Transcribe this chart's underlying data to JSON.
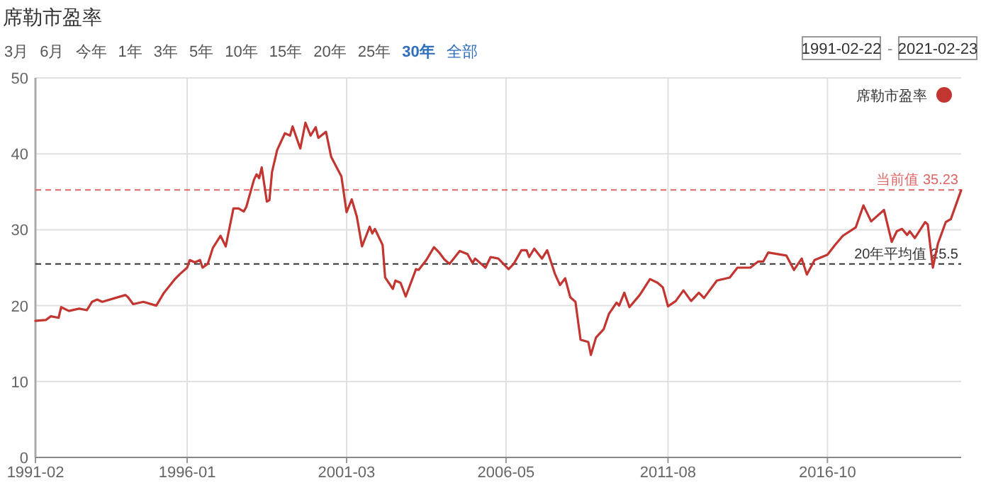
{
  "chart_data": {
    "type": "line",
    "title": "席勒市盈率",
    "annotations": [
      "3月",
      "6月",
      "今年",
      "1年",
      "3年",
      "5年",
      "10年",
      "15年",
      "20年",
      "25年",
      "30年",
      "全部",
      "1991-02-22",
      "-",
      "2021-02-23"
    ],
    "x": [
      "1991-02",
      "1991-06",
      "1991-08",
      "1991-11",
      "1991-12",
      "1992-03",
      "1992-07",
      "1992-10",
      "1992-12",
      "1993-02",
      "1993-04",
      "1993-09",
      "1994-01",
      "1994-02",
      "1994-04",
      "1994-08",
      "1995-01",
      "1995-04",
      "1995-08",
      "1995-10",
      "1996-01",
      "1996-02",
      "1996-04",
      "1996-06",
      "1996-07",
      "1996-09",
      "1996-11",
      "1997-02",
      "1997-04",
      "1997-07",
      "1997-09",
      "1997-11",
      "1997-12",
      "1998-03",
      "1998-04",
      "1998-05",
      "1998-06",
      "1998-08",
      "1998-09",
      "1998-10",
      "1998-12",
      "1999-03",
      "1999-05",
      "1999-06",
      "1999-09",
      "1999-11",
      "2000-01",
      "2000-03",
      "2000-04",
      "2000-07",
      "2000-09",
      "2001-01",
      "2001-03",
      "2001-05",
      "2001-07",
      "2001-09",
      "2001-12",
      "2002-01",
      "2002-02",
      "2002-05",
      "2002-06",
      "2002-09",
      "2002-10",
      "2002-12",
      "2003-02",
      "2003-06",
      "2003-07",
      "2003-10",
      "2004-01",
      "2004-03",
      "2004-05",
      "2004-07",
      "2004-11",
      "2005-02",
      "2005-04",
      "2005-05",
      "2005-09",
      "2005-11",
      "2006-02",
      "2006-06",
      "2006-08",
      "2006-11",
      "2007-01",
      "2007-02",
      "2007-04",
      "2007-07",
      "2007-09",
      "2007-12",
      "2008-02",
      "2008-04",
      "2008-06",
      "2008-08",
      "2008-10",
      "2009-01",
      "2009-02",
      "2009-04",
      "2009-07",
      "2009-09",
      "2009-12",
      "2010-01",
      "2010-03",
      "2010-05",
      "2010-09",
      "2011-01",
      "2011-04",
      "2011-06",
      "2011-08",
      "2011-11",
      "2012-02",
      "2012-05",
      "2012-08",
      "2012-10",
      "2013-03",
      "2013-08",
      "2013-11",
      "2014-04",
      "2014-07",
      "2014-09",
      "2014-11",
      "2015-06",
      "2015-09",
      "2015-12",
      "2016-02",
      "2016-05",
      "2016-10",
      "2017-01",
      "2017-04",
      "2017-09",
      "2017-12",
      "2018-03",
      "2018-08",
      "2018-11",
      "2019-01",
      "2019-03",
      "2019-05",
      "2019-06",
      "2019-08",
      "2019-12",
      "2020-01",
      "2020-03",
      "2020-05",
      "2020-08",
      "2020-10",
      "2021-02"
    ],
    "series": [
      {
        "name": "席勒市盈率",
        "color": "#c23531",
        "values": [
          18.0,
          18.1,
          18.6,
          18.4,
          19.8,
          19.3,
          19.6,
          19.4,
          20.5,
          20.8,
          20.5,
          21.0,
          21.4,
          21.1,
          20.2,
          20.5,
          20.0,
          21.7,
          23.4,
          24.1,
          25.0,
          26.0,
          25.7,
          26.0,
          25.0,
          25.5,
          27.6,
          29.2,
          27.8,
          32.8,
          32.8,
          32.4,
          33.0,
          36.6,
          37.3,
          36.8,
          38.2,
          33.7,
          33.9,
          37.6,
          40.5,
          42.7,
          42.4,
          43.6,
          40.7,
          44.1,
          42.4,
          43.5,
          42.1,
          42.9,
          39.6,
          37.0,
          32.3,
          34.0,
          31.7,
          27.8,
          30.4,
          29.5,
          30.1,
          28.0,
          23.7,
          22.2,
          23.3,
          23.0,
          21.2,
          24.8,
          24.7,
          26.0,
          27.7,
          27.0,
          26.1,
          25.5,
          27.2,
          26.8,
          25.6,
          26.2,
          25.0,
          26.4,
          26.2,
          24.8,
          25.5,
          27.3,
          27.3,
          26.4,
          27.5,
          26.2,
          27.3,
          24.2,
          22.7,
          23.6,
          21.1,
          20.5,
          15.5,
          15.2,
          13.5,
          15.8,
          16.9,
          18.9,
          20.4,
          20.0,
          21.7,
          19.8,
          21.4,
          23.5,
          23.0,
          22.4,
          19.9,
          20.6,
          22.0,
          20.6,
          21.7,
          21.0,
          23.3,
          23.7,
          25.0,
          25.0,
          25.8,
          25.8,
          27.0,
          26.6,
          24.7,
          26.2,
          24.1,
          26.0,
          26.7,
          28.0,
          29.2,
          30.3,
          33.2,
          31.1,
          32.6,
          28.4,
          29.8,
          30.1,
          29.3,
          29.8,
          28.9,
          31.0,
          30.7,
          25.0,
          28.2,
          31.0,
          31.4,
          35.2
        ]
      }
    ],
    "xlim": [
      "1991-02",
      "2021-02"
    ],
    "xticks": [
      "1991-02",
      "1996-01",
      "2001-03",
      "2006-05",
      "2011-08",
      "2016-10"
    ],
    "ylim": [
      0,
      50
    ],
    "yticks": [
      0,
      10,
      20,
      30,
      40,
      50
    ],
    "grid": true,
    "legend": "top right",
    "ref_lines": [
      {
        "axis": "y",
        "value": 35.23,
        "label": "当前值 35.23",
        "color": "#e06666",
        "line_style": "dashed"
      },
      {
        "axis": "y",
        "value": 25.5,
        "label": "20年平均值 25.5",
        "color": "#333333",
        "line_style": "dashed"
      }
    ]
  }
}
